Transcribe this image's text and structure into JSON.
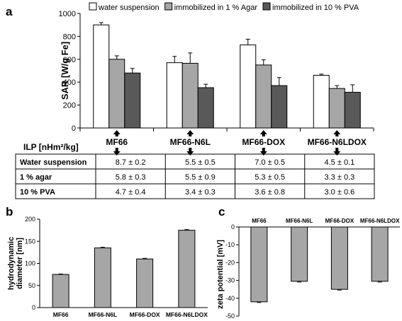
{
  "chart_data": [
    {
      "panel": "a",
      "type": "bar",
      "ylabel": "SAR [W/g Fe]",
      "ylim": [
        0,
        1000
      ],
      "yticks": [
        0,
        200,
        400,
        600,
        800,
        1000
      ],
      "categories": [
        "MF66",
        "MF66-N6L",
        "MF66-DOX",
        "MF66-N6LDOX"
      ],
      "legend_position": "top",
      "series": [
        {
          "name": "water suspension",
          "color": "#ffffff",
          "values": [
            900,
            570,
            725,
            460
          ],
          "errors": [
            20,
            55,
            50,
            10
          ]
        },
        {
          "name": "immobilized in 1 % Agar",
          "color": "#a6a6a6",
          "values": [
            600,
            565,
            550,
            345
          ],
          "errors": [
            30,
            90,
            45,
            25
          ]
        },
        {
          "name": "immobilized in 10 % PVA",
          "color": "#595959",
          "values": [
            480,
            352,
            370,
            312
          ],
          "errors": [
            40,
            30,
            70,
            65
          ]
        }
      ]
    },
    {
      "panel": "a-table",
      "type": "table",
      "header_label": "ILP  [nHm²/kg]",
      "rows": [
        {
          "label": "Water suspension",
          "cells": [
            "8.7 ± 0.2",
            "5.5 ± 0.5",
            "7.0 ± 0.5",
            "4.5 ± 0.1"
          ]
        },
        {
          "label": "1 % agar",
          "cells": [
            "5.8 ± 0.3",
            "5.5 ± 0.9",
            "5.3 ± 0.5",
            "3.3 ± 0.3"
          ]
        },
        {
          "label": "10 % PVA",
          "cells": [
            "4.7 ± 0.4",
            "3.4 ± 0.3",
            "3.6 ± 0.8",
            "3.0 ± 0.6"
          ]
        }
      ]
    },
    {
      "panel": "b",
      "type": "bar",
      "ylabel": "hydrodynamic diameter [nm]",
      "ylabel_lines": [
        "hydrodynamic",
        "diameter [nm]"
      ],
      "ylim": [
        0,
        200
      ],
      "yticks": [
        0,
        50,
        100,
        150,
        200
      ],
      "categories": [
        "MF66",
        "MF66-N6L",
        "MF66-DOX",
        "MF66-N6LDOX"
      ],
      "values": [
        75,
        135,
        110,
        175
      ],
      "errors": [
        1,
        1.5,
        1.5,
        1.5
      ],
      "color": "#a6a6a6"
    },
    {
      "panel": "c",
      "type": "bar",
      "ylabel": "zeta potential [mV]",
      "ylim": [
        -50,
        0
      ],
      "yticks": [
        0,
        -10,
        -20,
        -30,
        -40,
        -50
      ],
      "categories": [
        "MF66",
        "MF66-N6L",
        "MF66-DOX",
        "MF66-N6LDOX"
      ],
      "values": [
        -42,
        -30.5,
        -35,
        -30.5
      ],
      "errors": [
        0.4,
        0.4,
        0.4,
        0.4
      ],
      "color": "#a6a6a6"
    }
  ]
}
